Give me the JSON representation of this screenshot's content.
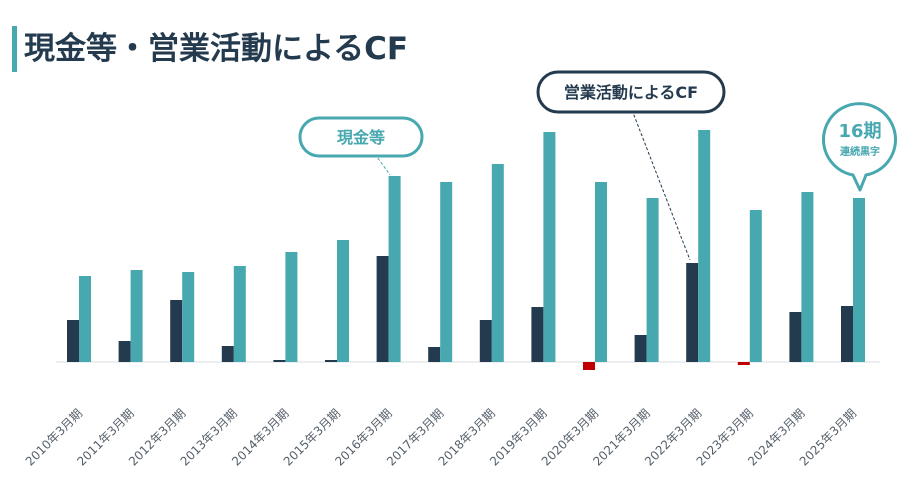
{
  "title": "現金等・営業活動によるCF",
  "colors": {
    "cash": "#48A8B0",
    "operating_cf": "#243A4E",
    "negative": "#C00000",
    "title_accent": "#48A8B0"
  },
  "callouts": {
    "cash": "現金等",
    "operating_cf": "営業活動によるCF",
    "streak_number": "16期",
    "streak_text": "連続黒字"
  },
  "chart_data": {
    "type": "bar",
    "title": "",
    "xlabel": "",
    "ylabel": "",
    "categories": [
      "2010年3月期",
      "2011年3月期",
      "2012年3月期",
      "2013年3月期",
      "2014年3月期",
      "2015年3月期",
      "2016年3月期",
      "2017年3月期",
      "2018年3月期",
      "2019年3月期",
      "2020年3月期",
      "2021年3月期",
      "2022年3月期",
      "2023年3月期",
      "2024年3月期",
      "2025年3月期"
    ],
    "series": [
      {
        "name": "営業活動によるCF",
        "color": "#243A4E",
        "values": [
          42,
          21,
          62,
          16,
          2,
          2,
          106,
          15,
          42,
          55,
          -8,
          27,
          99,
          -3,
          50,
          56
        ]
      },
      {
        "name": "現金等",
        "color": "#48A8B0",
        "values": [
          86,
          92,
          90,
          96,
          110,
          122,
          186,
          180,
          198,
          230,
          180,
          164,
          232,
          152,
          170,
          164
        ]
      }
    ],
    "ylim": [
      -10,
      240
    ],
    "grid": false,
    "legend": "none"
  }
}
